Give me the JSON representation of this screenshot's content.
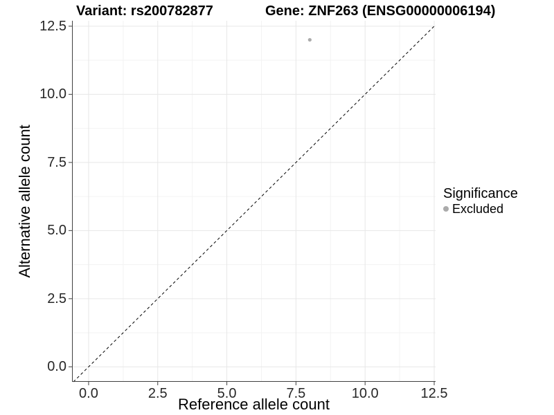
{
  "chart_data": {
    "type": "scatter",
    "title_left": "Variant: rs200782877",
    "title_right": "Gene: ZNF263 (ENSG00000006194)",
    "xlabel": "Reference allele count",
    "ylabel": "Alternative allele count",
    "x_tick_labels": [
      "0.0",
      "2.5",
      "5.0",
      "7.5",
      "10.0",
      "12.5"
    ],
    "y_tick_labels": [
      "0.0",
      "2.5",
      "5.0",
      "7.5",
      "10.0",
      "12.5"
    ],
    "xlim": [
      -0.6,
      12.55
    ],
    "ylim": [
      -0.55,
      12.7
    ],
    "grid": "major+minor",
    "legend_position": "right",
    "reference_line": {
      "kind": "identity y=x",
      "style": "dashed",
      "color": "#000000"
    },
    "series": [
      {
        "name": "Excluded",
        "color": "#ababab",
        "points": [
          {
            "x": 8,
            "y": 12
          }
        ]
      }
    ],
    "legend": {
      "title": "Significance",
      "items": [
        {
          "label": "Excluded",
          "color": "#ababab"
        }
      ]
    }
  },
  "colors": {
    "background": "#ffffff",
    "axis_line": "#404040",
    "tick_mark": "#404040",
    "tick_label": "#262626",
    "grid_major": "#e7e7e7",
    "grid_minor": "#f3f3f3"
  }
}
